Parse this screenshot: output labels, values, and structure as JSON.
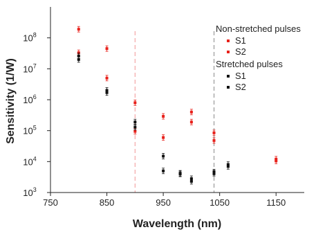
{
  "chart_data": {
    "type": "scatter",
    "xlabel": "Wavelength (nm)",
    "ylabel": "Sensitivity (1/W)",
    "x_range": [
      750,
      1200
    ],
    "x_ticks": [
      750,
      850,
      950,
      1050,
      1150
    ],
    "y_scale": "log",
    "y_range": [
      1000,
      1000000000
    ],
    "y_ticks": [
      {
        "value": 1000,
        "base": "10",
        "exp": "3"
      },
      {
        "value": 10000,
        "base": "10",
        "exp": "4"
      },
      {
        "value": 100000,
        "base": "10",
        "exp": "5"
      },
      {
        "value": 1000000,
        "base": "10",
        "exp": "6"
      },
      {
        "value": 10000000,
        "base": "10",
        "exp": "7"
      },
      {
        "value": 100000000,
        "base": "10",
        "exp": "8"
      }
    ],
    "reference_lines": [
      {
        "x": 900,
        "color": "#f4a6a6",
        "style": "dashed"
      },
      {
        "x": 1040,
        "color": "#999999",
        "style": "dashed"
      }
    ],
    "legend": {
      "position": "top-right",
      "groups": [
        {
          "title": "Non-stretched pulses",
          "entries": [
            "S1",
            "S2"
          ],
          "color": "#e8211b"
        },
        {
          "title": "Stretched pulses",
          "entries": [
            "S1",
            "S2"
          ],
          "color": "#111111"
        }
      ]
    },
    "series": [
      {
        "name": "Non-stretched pulses S1",
        "color": "#e8211b",
        "points": [
          [
            800,
            190000000
          ],
          [
            850,
            45000000
          ],
          [
            900,
            800000
          ],
          [
            950,
            290000
          ],
          [
            1000,
            400000
          ],
          [
            1040,
            85000
          ],
          [
            1150,
            12000
          ]
        ]
      },
      {
        "name": "Non-stretched pulses S2",
        "color": "#e8211b",
        "points": [
          [
            800,
            33000000
          ],
          [
            850,
            5000000
          ],
          [
            900,
            95000
          ],
          [
            950,
            60000
          ],
          [
            1000,
            190000
          ],
          [
            1040,
            48000
          ],
          [
            1150,
            10500
          ]
        ]
      },
      {
        "name": "Stretched pulses S1",
        "color": "#111111",
        "points": [
          [
            800,
            26000000
          ],
          [
            850,
            2000000
          ],
          [
            900,
            190000
          ],
          [
            950,
            15000
          ],
          [
            980,
            4200
          ],
          [
            1000,
            2800
          ],
          [
            1040,
            4600
          ],
          [
            1065,
            8000
          ]
        ]
      },
      {
        "name": "Stretched pulses S2",
        "color": "#111111",
        "points": [
          [
            800,
            20000000
          ],
          [
            850,
            1700000
          ],
          [
            900,
            130000
          ],
          [
            950,
            5000
          ],
          [
            980,
            4000
          ],
          [
            1000,
            2300
          ],
          [
            1040,
            4200
          ],
          [
            1065,
            7000
          ]
        ]
      }
    ]
  }
}
